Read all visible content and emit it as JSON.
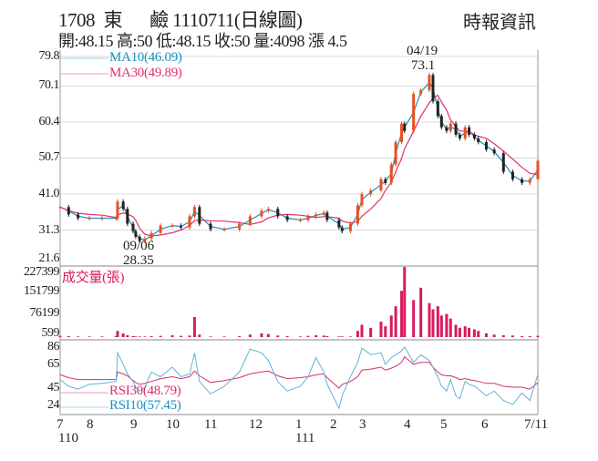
{
  "header": {
    "title": "1708  東　  鹼 1110711(日線圖)",
    "source": "時報資訊",
    "quote": "開:48.15 高:50 低:48.15 收:50 量:4098 漲 4.5"
  },
  "chart_data": [
    {
      "type": "candlestick",
      "panel": "price",
      "y_ticks": [
        "79.8",
        "70.1",
        "60.4",
        "50.7",
        "41.0",
        "31.3",
        "21.6"
      ],
      "ylim": [
        21.6,
        79.8
      ],
      "grid": true,
      "legend": [
        {
          "name": "MA10(46.09)",
          "color": "#1a8fc0"
        },
        {
          "name": "MA30(49.89)",
          "color": "#e0306e"
        }
      ],
      "legend_placement": "top-left",
      "annotations": [
        {
          "date": "04/19",
          "value": "73.1"
        },
        {
          "date": "09/06",
          "value": "28.35"
        }
      ],
      "up_color": "#e8501e",
      "down_color": "#222222",
      "x": [
        "2021-07-01",
        "2021-07-10",
        "2021-07-20",
        "2021-08-01",
        "2021-08-10",
        "2021-08-20",
        "2021-08-21",
        "2021-08-25",
        "2021-08-28",
        "2021-09-01",
        "2021-09-03",
        "2021-09-06",
        "2021-09-10",
        "2021-09-15",
        "2021-09-22",
        "2021-10-01",
        "2021-10-08",
        "2021-10-15",
        "2021-10-19",
        "2021-10-23",
        "2021-11-01",
        "2021-11-10",
        "2021-11-20",
        "2021-11-27",
        "2021-12-05",
        "2021-12-10",
        "2021-12-17",
        "2021-12-24",
        "2022-01-03",
        "2022-01-10",
        "2022-01-17",
        "2022-01-24",
        "2022-01-27",
        "2022-02-07",
        "2022-02-10",
        "2022-02-18",
        "2022-02-25",
        "2022-03-01",
        "2022-03-07",
        "2022-03-14",
        "2022-03-17",
        "2022-03-21",
        "2022-03-24",
        "2022-03-28",
        "2022-03-30",
        "2022-04-06",
        "2022-04-12",
        "2022-04-19",
        "2022-04-22",
        "2022-04-26",
        "2022-04-29",
        "2022-05-03",
        "2022-05-06",
        "2022-05-10",
        "2022-05-13",
        "2022-05-17",
        "2022-05-20",
        "2022-05-24",
        "2022-05-27",
        "2022-06-02",
        "2022-06-08",
        "2022-06-15",
        "2022-06-22",
        "2022-06-29",
        "2022-07-05",
        "2022-07-11"
      ],
      "close": [
        37.5,
        35.5,
        34.5,
        34.5,
        34.5,
        34.5,
        39,
        37,
        33,
        31,
        29.5,
        28.35,
        29,
        30.5,
        32.5,
        32.5,
        32,
        35,
        37.5,
        33,
        31.5,
        31.5,
        33,
        35,
        36.5,
        37,
        35,
        34,
        34,
        35,
        35.5,
        36,
        34,
        32,
        31,
        33,
        38,
        41,
        42,
        45,
        44,
        49,
        55,
        60,
        58,
        68,
        69,
        73.1,
        66,
        62,
        59,
        58,
        60,
        57,
        56,
        59,
        57,
        56,
        55,
        53,
        52,
        47,
        45,
        44,
        45,
        50
      ]
    },
    {
      "type": "bar",
      "panel": "volume",
      "series_name": "成交量(張)",
      "y_ticks": [
        "227399",
        "151799",
        "76199",
        "599"
      ],
      "ylim": [
        0,
        227399
      ],
      "color": "#d81b60",
      "values": [
        4000,
        3000,
        2000,
        2000,
        2000,
        3000,
        20000,
        12000,
        6000,
        3000,
        2000,
        2000,
        2000,
        3000,
        4000,
        6000,
        4000,
        5000,
        65000,
        8000,
        2000,
        2000,
        3000,
        8000,
        12000,
        10000,
        5000,
        3000,
        2000,
        4000,
        6000,
        5000,
        3000,
        2000,
        2000,
        2000,
        20000,
        40000,
        30000,
        50000,
        35000,
        70000,
        100000,
        150000,
        227399,
        120000,
        160000,
        110000,
        90000,
        100000,
        70000,
        75000,
        60000,
        40000,
        30000,
        35000,
        30000,
        25000,
        20000,
        12000,
        8000,
        6000,
        5000,
        3000,
        3000,
        4098
      ]
    },
    {
      "type": "line",
      "panel": "rsi",
      "y_ticks": [
        "86",
        "65",
        "45",
        "24"
      ],
      "ylim": [
        24,
        86
      ],
      "series": [
        {
          "name": "RSI30(48.79)",
          "color": "#d6306c",
          "values": [
            57,
            54,
            52,
            52,
            52,
            52,
            60,
            58,
            56,
            51,
            49,
            47,
            48,
            50,
            53,
            55,
            53,
            55,
            61,
            56,
            49,
            51,
            54,
            58,
            60,
            61,
            56,
            53,
            54,
            55,
            57,
            58,
            54,
            43,
            47,
            50,
            55,
            62,
            63,
            65,
            62,
            64,
            66,
            70,
            76,
            68,
            70,
            70,
            65,
            60,
            57,
            56,
            56,
            54,
            52,
            53,
            52,
            51,
            50,
            48,
            48,
            45,
            44,
            44,
            42,
            48.79
          ]
        },
        {
          "name": "RSI10(57.45)",
          "color": "#5fb4d8",
          "values": [
            52,
            45,
            42,
            47,
            48,
            50,
            80,
            68,
            58,
            50,
            44,
            40,
            44,
            60,
            55,
            65,
            55,
            58,
            80,
            50,
            37,
            45,
            60,
            84,
            80,
            72,
            50,
            40,
            45,
            55,
            75,
            60,
            47,
            22,
            35,
            55,
            70,
            85,
            78,
            80,
            68,
            75,
            78,
            82,
            86,
            70,
            78,
            72,
            65,
            55,
            45,
            40,
            52,
            35,
            32,
            50,
            47,
            45,
            42,
            35,
            40,
            30,
            26,
            38,
            30,
            57.45
          ]
        }
      ]
    }
  ],
  "x_axis": {
    "month_ticks": [
      "7",
      "8",
      "9",
      "10",
      "11",
      "12",
      "1",
      "2",
      "3",
      "4",
      "5",
      "6",
      "7/11"
    ],
    "year_labels": [
      "110",
      "111"
    ]
  }
}
